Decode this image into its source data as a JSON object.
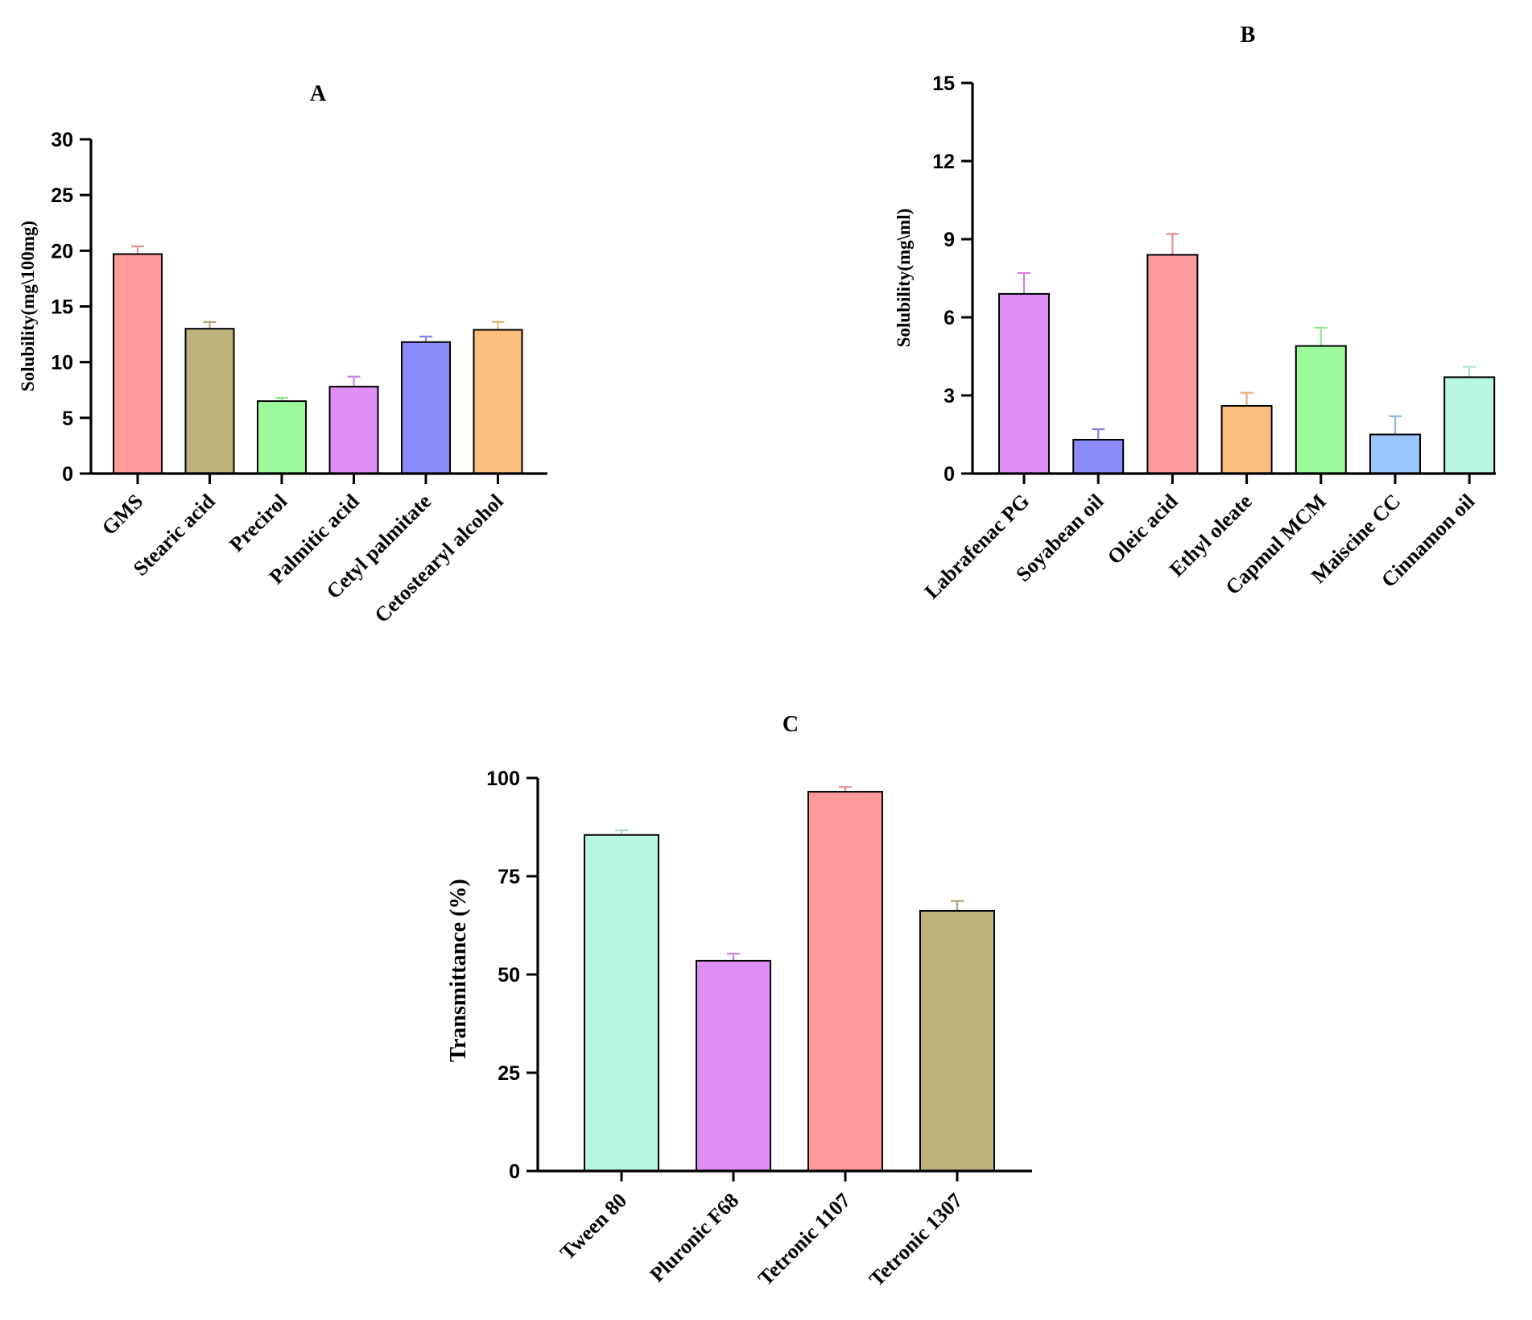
{
  "chart_data": [
    {
      "type": "bar",
      "title": "A",
      "ylabel": "Solubility(mg\\100mg)",
      "xlabel": "",
      "ylim": [
        0,
        30
      ],
      "yticks": [
        "0",
        "5",
        "10",
        "15",
        "20",
        "25",
        "30"
      ],
      "categories": [
        "GMS",
        "Stearic acid",
        "Precirol",
        "Palmitic acid",
        "Cetyl palmitate",
        "Cetostearyl alcohol"
      ],
      "values": [
        19.7,
        13.0,
        6.5,
        7.8,
        11.8,
        12.9
      ],
      "errors": [
        0.7,
        0.6,
        0.3,
        0.9,
        0.5,
        0.7
      ],
      "colors": [
        "#fd9b9b",
        "#beb37c",
        "#9cfa9c",
        "#df8ef3",
        "#8c8bfb",
        "#fdbf7e"
      ],
      "grid": false
    },
    {
      "type": "bar",
      "title": "B",
      "ylabel": "Solubility(mg\\ml)",
      "xlabel": "",
      "ylim": [
        0,
        15
      ],
      "yticks": [
        "0",
        "3",
        "6",
        "9",
        "12",
        "15"
      ],
      "categories": [
        "Labrafenac PG",
        "Soyabean oil",
        "Oleic acid",
        "Ethyl oleate",
        "Capmul MCM",
        "Maiscine CC",
        "Cinnamon oil"
      ],
      "values": [
        6.9,
        1.3,
        8.4,
        2.6,
        4.9,
        1.5,
        3.7
      ],
      "errors": [
        0.8,
        0.4,
        0.8,
        0.5,
        0.7,
        0.7,
        0.4
      ],
      "colors": [
        "#df8ef3",
        "#8c8bfb",
        "#fd9b9b",
        "#fdbf7e",
        "#9cfa9c",
        "#99c7fb",
        "#b7f6df"
      ],
      "grid": false
    },
    {
      "type": "bar",
      "title": "C",
      "ylabel": "Transmittance (%)",
      "xlabel": "",
      "ylim": [
        0,
        100
      ],
      "yticks": [
        "0",
        "25",
        "50",
        "75",
        "100"
      ],
      "categories": [
        "Tween 80",
        "Pluronic F68",
        "Tetronic 1107",
        "Tetronic 1307"
      ],
      "values": [
        85.5,
        53.5,
        96.5,
        66.2
      ],
      "errors": [
        1.2,
        1.8,
        1.2,
        2.5
      ],
      "colors": [
        "#b7f6df",
        "#df8ef3",
        "#fd9b9b",
        "#beb37c"
      ],
      "grid": false
    }
  ]
}
